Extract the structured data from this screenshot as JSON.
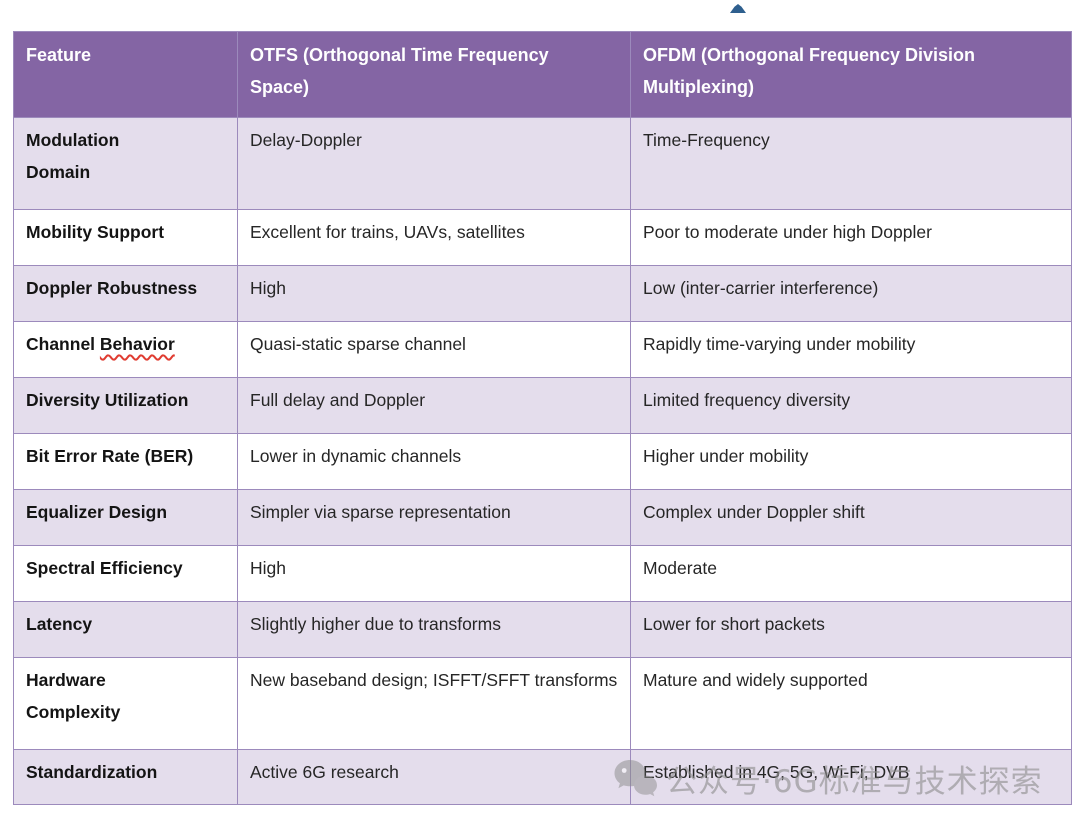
{
  "marker": {
    "name": "collapse-triangle",
    "color": "#2E5F8E"
  },
  "table": {
    "header": {
      "columns": [
        "Feature",
        "OTFS (Orthogonal Time Frequency\nSpace)",
        "OFDM (Orthogonal Frequency Division\nMultiplexing)"
      ]
    },
    "rows": [
      {
        "feature": "Modulation\nDomain",
        "otfs": "Delay-Doppler",
        "ofdm": "Time-Frequency"
      },
      {
        "feature": "Mobility Support",
        "otfs": "Excellent for trains, UAVs, satellites",
        "ofdm": "Poor to moderate under high Doppler"
      },
      {
        "feature": "Doppler Robustness",
        "otfs": "High",
        "ofdm": "Low (inter-carrier interference)"
      },
      {
        "feature": "Channel Behavior",
        "feature_plain": "Channel ",
        "feature_misspelled": "Behavior",
        "otfs": "Quasi-static sparse channel",
        "ofdm": "Rapidly time-varying under mobility"
      },
      {
        "feature": "Diversity Utilization",
        "otfs": "Full delay and Doppler",
        "ofdm": "Limited frequency diversity"
      },
      {
        "feature": "Bit Error Rate (BER)",
        "otfs": "Lower in dynamic channels",
        "ofdm": "Higher under mobility"
      },
      {
        "feature": "Equalizer Design",
        "otfs": "Simpler via sparse representation",
        "ofdm": "Complex under Doppler shift"
      },
      {
        "feature": "Spectral Efficiency",
        "otfs": "High",
        "ofdm": "Moderate"
      },
      {
        "feature": "Latency",
        "otfs": "Slightly higher due to transforms",
        "ofdm": "Lower for short packets"
      },
      {
        "feature": "Hardware\nComplexity",
        "otfs": "New baseband design; ISFFT/SFFT transforms",
        "ofdm": "Mature and widely supported"
      },
      {
        "feature": "Standardization",
        "otfs": "Active 6G research",
        "ofdm": "Established in 4G, 5G, Wi-Fi, DVB"
      }
    ]
  },
  "colors": {
    "header_bg": "#8465A4",
    "header_text": "#FFFFFF",
    "alt_row_bg": "#E4DDEC",
    "border": "#9C8ABC",
    "body_text": "#262626",
    "spellcheck": "#E03C31",
    "marker": "#2E5F8E",
    "watermark": "#8C8C8C"
  },
  "watermark": {
    "icon": "wechat-bubbles-icon",
    "text": "公众号·6G标准与技术探索"
  }
}
